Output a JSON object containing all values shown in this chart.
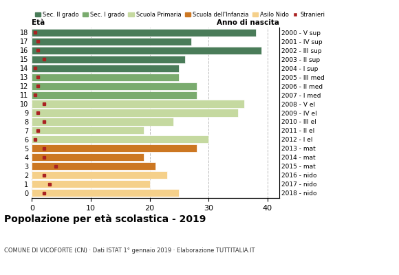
{
  "ages": [
    18,
    17,
    16,
    15,
    14,
    13,
    12,
    11,
    10,
    9,
    8,
    7,
    6,
    5,
    4,
    3,
    2,
    1,
    0
  ],
  "years": [
    "2000 - V sup",
    "2001 - IV sup",
    "2002 - III sup",
    "2003 - II sup",
    "2004 - I sup",
    "2005 - III med",
    "2006 - II med",
    "2007 - I med",
    "2008 - V el",
    "2009 - IV el",
    "2010 - III el",
    "2011 - II el",
    "2012 - I el",
    "2013 - mat",
    "2014 - mat",
    "2015 - mat",
    "2016 - nido",
    "2017 - nido",
    "2018 - nido"
  ],
  "bar_values": [
    38,
    27,
    39,
    26,
    25,
    25,
    28,
    28,
    36,
    35,
    24,
    19,
    30,
    28,
    19,
    21,
    23,
    20,
    25
  ],
  "stranieri_values": [
    0.5,
    1,
    1,
    2,
    0.5,
    1,
    1,
    0.5,
    2,
    1,
    2,
    1,
    0.5,
    2,
    2,
    4,
    2,
    3,
    2
  ],
  "colors": {
    "sec2": "#4a7c59",
    "sec1": "#7aab6e",
    "primaria": "#c5d9a0",
    "infanzia": "#cc7722",
    "nido": "#f5d08a",
    "stranieri": "#aa2222"
  },
  "category_groups": {
    "sec2": [
      14,
      15,
      16,
      17,
      18
    ],
    "sec1": [
      11,
      12,
      13
    ],
    "primaria": [
      6,
      7,
      8,
      9,
      10
    ],
    "infanzia": [
      3,
      4,
      5
    ],
    "nido": [
      0,
      1,
      2
    ]
  },
  "title": "Popolazione per età scolastica - 2019",
  "subtitle": "COMUNE DI VICOFORTE (CN) · Dati ISTAT 1° gennaio 2019 · Elaborazione TUTTITALIA.IT",
  "xlabel_left": "Età",
  "xlabel_right": "Anno di nascita",
  "legend_labels": [
    "Sec. II grado",
    "Sec. I grado",
    "Scuola Primaria",
    "Scuola dell'Infanzia",
    "Asilo Nido",
    "Stranieri"
  ],
  "xlim": [
    0,
    42
  ],
  "xticks": [
    0,
    10,
    20,
    30,
    40
  ],
  "figsize": [
    5.8,
    4.0
  ],
  "dpi": 100
}
